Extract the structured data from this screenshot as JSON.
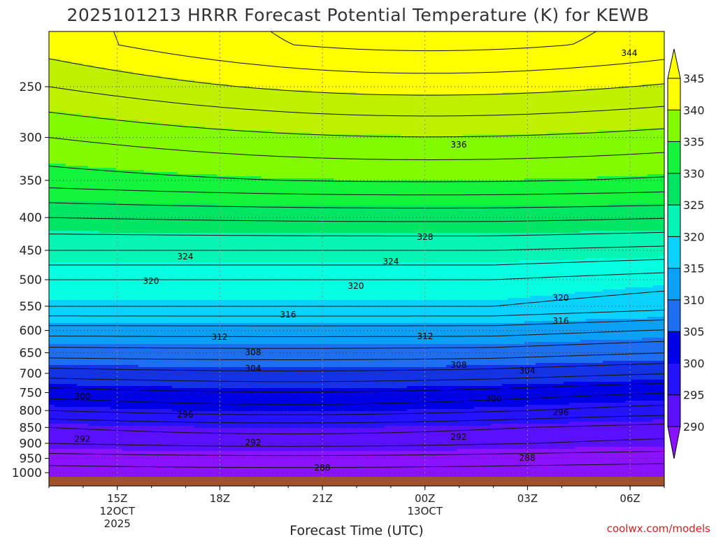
{
  "chart_data": {
    "type": "heatmap",
    "title": "2025101213 HRRR Forecast Potential Temperature (K) for KEWB",
    "xlabel": "Forecast Time (UTC)",
    "ylabel": "",
    "y_ticks": [
      250,
      300,
      350,
      400,
      450,
      500,
      550,
      600,
      650,
      700,
      750,
      800,
      850,
      900,
      950,
      1000
    ],
    "y_range": [
      200,
      1020
    ],
    "x_ticks": [
      {
        "label": "15Z",
        "sub": [
          "12OCT",
          "2025"
        ]
      },
      {
        "label": "18Z",
        "sub": []
      },
      {
        "label": "21Z",
        "sub": []
      },
      {
        "label": "00Z",
        "sub": [
          "13OCT"
        ]
      },
      {
        "label": "03Z",
        "sub": []
      },
      {
        "label": "06Z",
        "sub": []
      }
    ],
    "x_range_hours": [
      13,
      31
    ],
    "x_tick_hours": [
      15,
      18,
      21,
      24,
      27,
      30
    ],
    "colorbar": {
      "levels": [
        290,
        295,
        300,
        305,
        310,
        315,
        320,
        325,
        330,
        335,
        340,
        345
      ],
      "colors": [
        "#8a12ff",
        "#5a10ff",
        "#2512ff",
        "#0000e6",
        "#1432e6",
        "#1e6ef0",
        "#0aa0f5",
        "#0ad2ff",
        "#06ffe0",
        "#06f5b4",
        "#00e664",
        "#12f53c",
        "#82fa00",
        "#bef000",
        "#ffff00"
      ],
      "extend": "both",
      "tick_labels": [
        290,
        295,
        300,
        305,
        310,
        315,
        320,
        325,
        330,
        335,
        340,
        345
      ]
    },
    "pressure_profile_at_12Z_approx": [
      {
        "p": 1000,
        "theta": 287
      },
      {
        "p": 950,
        "theta": 289
      },
      {
        "p": 900,
        "theta": 292
      },
      {
        "p": 850,
        "theta": 294
      },
      {
        "p": 800,
        "theta": 298
      },
      {
        "p": 750,
        "theta": 301
      },
      {
        "p": 700,
        "theta": 305
      },
      {
        "p": 650,
        "theta": 309
      },
      {
        "p": 600,
        "theta": 313
      },
      {
        "p": 550,
        "theta": 318
      },
      {
        "p": 500,
        "theta": 320
      },
      {
        "p": 450,
        "theta": 324
      },
      {
        "p": 400,
        "theta": 328
      },
      {
        "p": 350,
        "theta": 333
      },
      {
        "p": 300,
        "theta": 336
      },
      {
        "p": 250,
        "theta": 340
      },
      {
        "p": 215,
        "theta": 343
      }
    ],
    "contour_labels": [
      {
        "text": "344"
      },
      {
        "text": "336"
      },
      {
        "text": "328"
      },
      {
        "text": "324"
      },
      {
        "text": "324"
      },
      {
        "text": "320"
      },
      {
        "text": "320"
      },
      {
        "text": "320"
      },
      {
        "text": "316"
      },
      {
        "text": "316"
      },
      {
        "text": "312"
      },
      {
        "text": "312"
      },
      {
        "text": "308"
      },
      {
        "text": "308"
      },
      {
        "text": "304"
      },
      {
        "text": "304"
      },
      {
        "text": "300"
      },
      {
        "text": "300"
      },
      {
        "text": "296"
      },
      {
        "text": "296"
      },
      {
        "text": "292"
      },
      {
        "text": "292"
      },
      {
        "text": "292"
      },
      {
        "text": "288"
      },
      {
        "text": "288"
      }
    ],
    "terrain_color": "#a0522d",
    "grid": "dotted"
  },
  "footer": {
    "credit": "coolwx.com/models"
  }
}
